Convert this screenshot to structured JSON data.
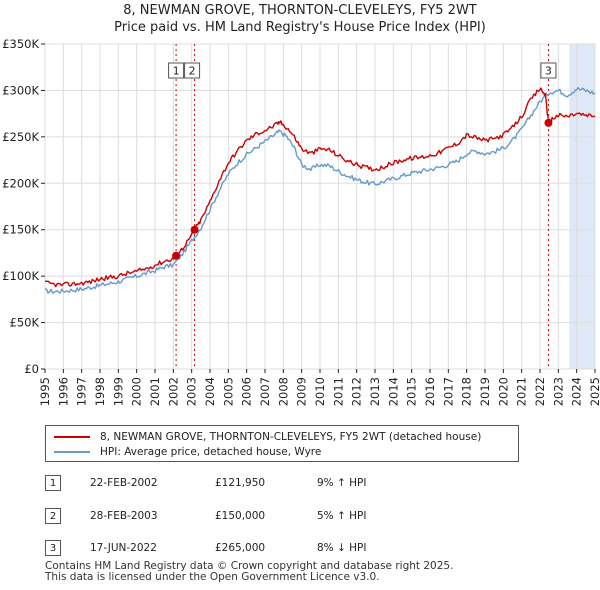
{
  "title_line1": "8, NEWMAN GROVE, THORNTON-CLEVELEYS, FY5 2WT",
  "title_line2": "Price paid vs. HM Land Registry's House Price Index (HPI)",
  "chart_data": {
    "type": "line",
    "title": "Price paid vs. HM Land Registry's House Price Index (HPI)",
    "xlabel": "",
    "ylabel": "",
    "xlim": [
      1995.0,
      2025.0
    ],
    "ylim": [
      0,
      350000
    ],
    "x_ticks": [
      1995,
      1996,
      1997,
      1998,
      1999,
      2000,
      2001,
      2002,
      2003,
      2004,
      2005,
      2006,
      2007,
      2008,
      2009,
      2010,
      2011,
      2012,
      2013,
      2014,
      2015,
      2016,
      2017,
      2018,
      2019,
      2020,
      2021,
      2022,
      2023,
      2024,
      2025
    ],
    "y_ticks": [
      {
        "value": 0,
        "label": "£0"
      },
      {
        "value": 50000,
        "label": "£50K"
      },
      {
        "value": 100000,
        "label": "£100K"
      },
      {
        "value": 150000,
        "label": "£150K"
      },
      {
        "value": 200000,
        "label": "£200K"
      },
      {
        "value": 250000,
        "label": "£250K"
      },
      {
        "value": 300000,
        "label": "£300K"
      },
      {
        "value": 350000,
        "label": "£350K"
      }
    ],
    "grid": true,
    "colors": {
      "property": "#cc0000",
      "hpi": "#6699cc",
      "shade": "#dfe8f6",
      "vline": "#cc0000"
    },
    "series": [
      {
        "name": "8, NEWMAN GROVE, THORNTON-CLEVELEYS, FY5 2WT (detached house)",
        "x": [
          1995.0,
          1995.5,
          1996.0,
          1996.5,
          1997.0,
          1997.5,
          1998.0,
          1998.5,
          1999.0,
          1999.5,
          2000.0,
          2000.5,
          2001.0,
          2001.5,
          2002.0,
          2002.15,
          2002.5,
          2003.0,
          2003.16,
          2003.5,
          2004.0,
          2004.5,
          2005.0,
          2005.5,
          2006.0,
          2006.5,
          2007.0,
          2007.5,
          2007.8,
          2008.2,
          2008.6,
          2009.0,
          2009.5,
          2010.0,
          2010.5,
          2011.0,
          2011.5,
          2012.0,
          2012.5,
          2013.0,
          2013.5,
          2014.0,
          2014.5,
          2015.0,
          2015.5,
          2016.0,
          2016.5,
          2017.0,
          2017.5,
          2018.0,
          2018.5,
          2019.0,
          2019.5,
          2020.0,
          2020.5,
          2021.0,
          2021.5,
          2022.0,
          2022.3,
          2022.46,
          2022.7,
          2023.0,
          2023.5,
          2024.0,
          2024.5,
          2025.0
        ],
        "values": [
          93000,
          91000,
          90500,
          91500,
          92500,
          94000,
          97000,
          98500,
          100000,
          103000,
          105000,
          108000,
          112000,
          116000,
          119000,
          121950,
          130000,
          144000,
          150000,
          160000,
          180000,
          203000,
          222000,
          235000,
          246000,
          253000,
          257000,
          262000,
          266000,
          260000,
          250000,
          237000,
          232000,
          237000,
          236000,
          230000,
          224000,
          220000,
          217000,
          215000,
          218000,
          222000,
          225000,
          227000,
          228000,
          230000,
          233000,
          238000,
          243000,
          252000,
          249000,
          246000,
          248000,
          252000,
          260000,
          272000,
          290000,
          302000,
          295000,
          265000,
          270000,
          273000,
          272000,
          275000,
          273000,
          272000
        ]
      },
      {
        "name": "HPI: Average price, detached house, Wyre",
        "x": [
          1995.0,
          1995.5,
          1996.0,
          1996.5,
          1997.0,
          1997.5,
          1998.0,
          1998.5,
          1999.0,
          1999.5,
          2000.0,
          2000.5,
          2001.0,
          2001.5,
          2002.0,
          2002.5,
          2003.0,
          2003.5,
          2004.0,
          2004.5,
          2005.0,
          2005.5,
          2006.0,
          2006.5,
          2007.0,
          2007.5,
          2007.8,
          2008.2,
          2008.6,
          2009.0,
          2009.5,
          2010.0,
          2010.5,
          2011.0,
          2011.5,
          2012.0,
          2012.5,
          2013.0,
          2013.5,
          2014.0,
          2014.5,
          2015.0,
          2015.5,
          2016.0,
          2016.5,
          2017.0,
          2017.5,
          2018.0,
          2018.5,
          2019.0,
          2019.5,
          2020.0,
          2020.5,
          2021.0,
          2021.5,
          2022.0,
          2022.5,
          2023.0,
          2023.5,
          2024.0,
          2024.5,
          2025.0
        ],
        "values": [
          84000,
          83500,
          84000,
          85000,
          86000,
          88000,
          90000,
          92000,
          94000,
          97000,
          100000,
          103000,
          106000,
          110000,
          112000,
          124000,
          138000,
          152000,
          172000,
          192000,
          210000,
          222000,
          231000,
          238000,
          245000,
          252000,
          256000,
          250000,
          238000,
          220000,
          215000,
          220000,
          219000,
          213000,
          208000,
          204000,
          201000,
          199000,
          202000,
          205000,
          208000,
          211000,
          213000,
          215000,
          217000,
          220000,
          224000,
          232000,
          235000,
          232000,
          234000,
          238000,
          246000,
          258000,
          273000,
          288000,
          298000,
          300000,
          295000,
          302000,
          300000,
          297000
        ]
      }
    ],
    "shade_range": [
      2023.6,
      2025.0
    ],
    "sales": [
      {
        "n": "1",
        "x": 2002.15,
        "y": 121950
      },
      {
        "n": "2",
        "x": 2003.16,
        "y": 150000
      },
      {
        "n": "3",
        "x": 2022.46,
        "y": 265000
      }
    ]
  },
  "legend": {
    "property_label": "8, NEWMAN GROVE, THORNTON-CLEVELEYS, FY5 2WT (detached house)",
    "hpi_label": "HPI: Average price, detached house, Wyre"
  },
  "sales_table": [
    {
      "n": "1",
      "date": "22-FEB-2002",
      "price": "£121,950",
      "hpi": "9% ↑ HPI"
    },
    {
      "n": "2",
      "date": "28-FEB-2003",
      "price": "£150,000",
      "hpi": "5% ↑ HPI"
    },
    {
      "n": "3",
      "date": "17-JUN-2022",
      "price": "£265,000",
      "hpi": "8% ↓ HPI"
    }
  ],
  "footer": {
    "line1": "Contains HM Land Registry data © Crown copyright and database right 2025.",
    "line2": "This data is licensed under the Open Government Licence v3.0."
  }
}
